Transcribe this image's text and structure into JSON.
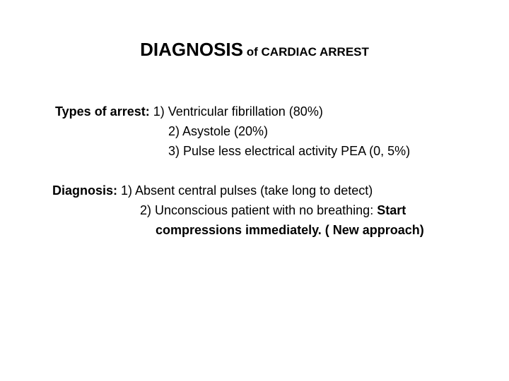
{
  "title": {
    "main": "DIAGNOSIS",
    "connector": " of ",
    "sub": "CARDIAC ARREST"
  },
  "types": {
    "label": "Types of arrest:",
    "item1": "  1)  Ventricular fibrillation (80%)",
    "item2": "2)  Asystole (20%)",
    "item3": "3)  Pulse less electrical activity  PEA (0, 5%)"
  },
  "diagnosis": {
    "label": "Diagnosis:",
    "item1": "  1)  Absent central pulses (take long to detect)",
    "item2": "2)  Unconscious patient with no breathing: ",
    "item2_strong": "Start",
    "item3_strong": "compressions immediately. ( New approach)"
  },
  "style": {
    "background_color": "#ffffff",
    "text_color": "#000000",
    "title_main_fontsize": 26,
    "title_sub_fontsize": 17,
    "body_fontsize": 18,
    "line_height": 28,
    "font_family": "Arial"
  }
}
